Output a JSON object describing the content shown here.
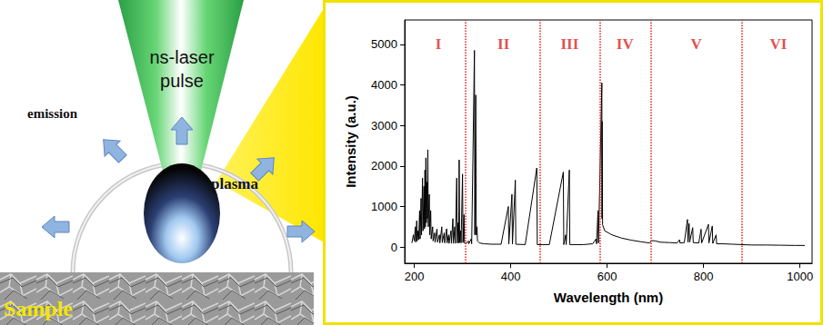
{
  "chart_data": {
    "type": "line",
    "xlabel": "Wavelength (nm)",
    "ylabel": "Intensity (a.u.)",
    "x": [
      195,
      198,
      200,
      202,
      203,
      205,
      206,
      208,
      209,
      211,
      212,
      214,
      215,
      217,
      218,
      220,
      221,
      222,
      223,
      224,
      225,
      226,
      227,
      228,
      229,
      231,
      232,
      234,
      235,
      238,
      239,
      242,
      243,
      247,
      248,
      252,
      253,
      257,
      258,
      262,
      263,
      267,
      268,
      271,
      272,
      276,
      277,
      280,
      281,
      284,
      285,
      288,
      289,
      291,
      292,
      293,
      294,
      296,
      297,
      300,
      301,
      303,
      304,
      308,
      312,
      313,
      318,
      319,
      324.7,
      325.5,
      327.4,
      328.5,
      330,
      331,
      335,
      345,
      360,
      380,
      395,
      396,
      402.5,
      403.5,
      409.5,
      410.5,
      430,
      454,
      455,
      480,
      509,
      510,
      514,
      515,
      521.5,
      522.5,
      550,
      570,
      577,
      578,
      581,
      582,
      588.99,
      589.3,
      589.59,
      590.5,
      595,
      610,
      630,
      650,
      670,
      688,
      690,
      692,
      700,
      710,
      730,
      745,
      750,
      751,
      760,
      766.5,
      767.5,
      769.9,
      771,
      777.4,
      778.5,
      790,
      794.8,
      796,
      810,
      811,
      818,
      819,
      826,
      827,
      840,
      860,
      880,
      900,
      930,
      960,
      990,
      1010
    ],
    "values": [
      100,
      300,
      150,
      500,
      120,
      650,
      150,
      400,
      180,
      900,
      200,
      1200,
      300,
      1700,
      400,
      1500,
      450,
      1900,
      500,
      2200,
      600,
      1600,
      700,
      2400,
      500,
      1300,
      300,
      900,
      200,
      500,
      150,
      350,
      120,
      450,
      120,
      300,
      100,
      500,
      110,
      350,
      100,
      450,
      100,
      300,
      90,
      400,
      90,
      700,
      90,
      500,
      90,
      1700,
      100,
      600,
      100,
      2150,
      110,
      400,
      100,
      1800,
      110,
      800,
      100,
      90,
      150,
      80,
      200,
      80,
      4850,
      300,
      3750,
      300,
      500,
      150,
      100,
      80,
      70,
      70,
      1000,
      70,
      1300,
      70,
      1650,
      70,
      60,
      1950,
      60,
      60,
      1850,
      60,
      300,
      60,
      1900,
      60,
      60,
      80,
      200,
      80,
      900,
      100,
      4050,
      700,
      3100,
      550,
      400,
      300,
      220,
      170,
      130,
      100,
      120,
      160,
      150,
      120,
      110,
      100,
      180,
      100,
      110,
      680,
      120,
      580,
      120,
      480,
      110,
      100,
      440,
      100,
      560,
      100,
      520,
      90,
      300,
      80,
      80,
      70,
      60,
      50,
      50,
      45,
      40,
      40
    ],
    "color": "#000000",
    "xlim": [
      180,
      1025
    ],
    "xticks": [
      200,
      400,
      600,
      800,
      1000
    ],
    "ylim": [
      -400,
      5600
    ],
    "yticks": [
      0,
      1000,
      2000,
      3000,
      4000,
      5000
    ],
    "grid": false,
    "region_boundaries": [
      305,
      460,
      585,
      690,
      880
    ],
    "region_labels": [
      {
        "text": "I",
        "x": 250,
        "y": 5000
      },
      {
        "text": "II",
        "x": 385,
        "y": 5000
      },
      {
        "text": "III",
        "x": 522,
        "y": 5000
      },
      {
        "text": "IV",
        "x": 637,
        "y": 5000
      },
      {
        "text": "V",
        "x": 785,
        "y": 5000
      },
      {
        "text": "VI",
        "x": 955,
        "y": 5000
      }
    ]
  },
  "diagram": {
    "laser_label": [
      "ns-laser",
      "pulse"
    ],
    "emission_label": "emission",
    "plasma_label": "plasma",
    "sample_label": "Sample"
  }
}
